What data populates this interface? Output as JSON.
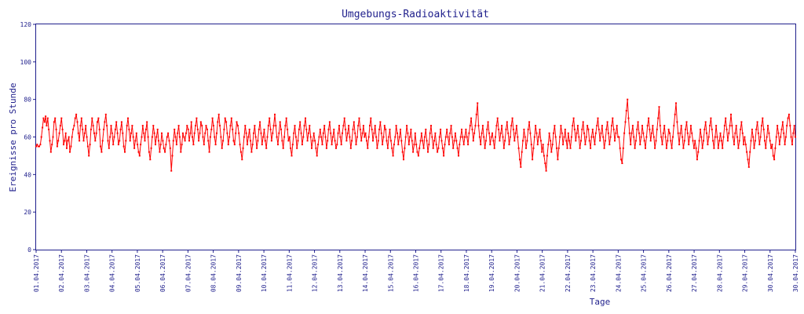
{
  "chart_data": {
    "type": "line",
    "title": "Umgebungs-Radioaktivität",
    "xlabel": "Tage",
    "ylabel": "Ereignisse pro Stunde",
    "ylim": [
      0,
      120
    ],
    "yticks": [
      0,
      20,
      40,
      60,
      80,
      100,
      120
    ],
    "xlim": [
      0,
      29
    ],
    "xtick_labels": [
      "01.04.2017",
      "02.04.2017",
      "03.04.2017",
      "04.04.2017",
      "05.04.2017",
      "06.04.2017",
      "07.04.2017",
      "08.04.2017",
      "09.04.2017",
      "10.04.2017",
      "11.04.2017",
      "12.04.2017",
      "13.04.2017",
      "14.04.2017",
      "15.04.2017",
      "16.04.2017",
      "17.04.2017",
      "18.04.2017",
      "19.04.2017",
      "20.04.2017",
      "21.04.2017",
      "22.04.2017",
      "23.04.2017",
      "24.04.2017",
      "25.04.2017",
      "26.04.2017",
      "27.04.2017",
      "28.04.2017",
      "29.04.2017",
      "30.04.2017",
      "30.04.2017"
    ],
    "grid": false,
    "colors": {
      "line": "#ff0000",
      "axis": "#1f1f8c",
      "marker": "#ff0000"
    },
    "series": [
      {
        "name": "",
        "points_per_day": 24,
        "start_date": "01.04.2017",
        "values": [
          55,
          56,
          55,
          55,
          56,
          60,
          65,
          70,
          68,
          71,
          66,
          70,
          64,
          58,
          52,
          56,
          60,
          68,
          70,
          64,
          55,
          58,
          62,
          66,
          70,
          64,
          56,
          58,
          62,
          54,
          58,
          60,
          52,
          55,
          60,
          64,
          66,
          70,
          72,
          68,
          62,
          58,
          66,
          70,
          64,
          58,
          62,
          66,
          60,
          55,
          50,
          56,
          64,
          70,
          66,
          62,
          58,
          62,
          68,
          70,
          64,
          55,
          52,
          58,
          64,
          68,
          72,
          66,
          58,
          54,
          60,
          66,
          62,
          56,
          60,
          64,
          68,
          62,
          56,
          58,
          64,
          68,
          62,
          55,
          52,
          58,
          66,
          70,
          64,
          58,
          62,
          66,
          60,
          54,
          58,
          62,
          56,
          52,
          50,
          56,
          60,
          66,
          62,
          58,
          64,
          68,
          60,
          52,
          48,
          54,
          60,
          66,
          62,
          56,
          60,
          64,
          58,
          52,
          56,
          62,
          58,
          54,
          52,
          56,
          60,
          62,
          58,
          54,
          42,
          50,
          58,
          64,
          60,
          56,
          62,
          66,
          60,
          52,
          56,
          62,
          60,
          58,
          62,
          66,
          64,
          58,
          62,
          68,
          60,
          56,
          62,
          66,
          70,
          64,
          58,
          62,
          68,
          66,
          60,
          56,
          62,
          66,
          64,
          58,
          52,
          60,
          64,
          70,
          66,
          60,
          56,
          62,
          68,
          72,
          66,
          60,
          54,
          58,
          64,
          70,
          68,
          62,
          56,
          60,
          66,
          70,
          64,
          58,
          56,
          62,
          68,
          66,
          62,
          56,
          52,
          48,
          54,
          60,
          66,
          62,
          56,
          60,
          64,
          58,
          52,
          56,
          62,
          66,
          60,
          54,
          58,
          64,
          68,
          62,
          56,
          60,
          64,
          58,
          54,
          60,
          66,
          70,
          64,
          58,
          62,
          66,
          72,
          66,
          60,
          56,
          62,
          68,
          64,
          58,
          54,
          60,
          66,
          70,
          64,
          58,
          60,
          54,
          50,
          56,
          62,
          66,
          60,
          54,
          58,
          64,
          68,
          62,
          56,
          60,
          66,
          70,
          64,
          58,
          62,
          66,
          60,
          54,
          58,
          62,
          58,
          54,
          50,
          56,
          60,
          64,
          60,
          56,
          62,
          66,
          60,
          54,
          58,
          64,
          68,
          62,
          56,
          60,
          64,
          58,
          54,
          56,
          62,
          66,
          60,
          56,
          62,
          66,
          70,
          64,
          58,
          62,
          66,
          60,
          54,
          58,
          64,
          68,
          62,
          56,
          60,
          66,
          70,
          64,
          58,
          62,
          66,
          60,
          62,
          58,
          54,
          60,
          66,
          70,
          64,
          58,
          62,
          66,
          60,
          54,
          58,
          64,
          68,
          62,
          56,
          60,
          66,
          64,
          58,
          54,
          60,
          64,
          58,
          54,
          50,
          56,
          60,
          66,
          62,
          56,
          60,
          64,
          58,
          52,
          48,
          54,
          60,
          66,
          62,
          56,
          60,
          64,
          58,
          52,
          56,
          62,
          56,
          52,
          50,
          54,
          58,
          62,
          58,
          54,
          60,
          64,
          58,
          52,
          56,
          62,
          66,
          60,
          54,
          58,
          62,
          56,
          52,
          54,
          60,
          64,
          58,
          54,
          50,
          56,
          60,
          64,
          60,
          56,
          62,
          66,
          60,
          54,
          58,
          62,
          58,
          54,
          50,
          56,
          60,
          64,
          60,
          56,
          60,
          64,
          60,
          56,
          62,
          66,
          70,
          64,
          58,
          62,
          66,
          72,
          78,
          66,
          60,
          56,
          62,
          66,
          60,
          54,
          58,
          64,
          68,
          62,
          56,
          60,
          62,
          58,
          54,
          60,
          66,
          70,
          64,
          58,
          62,
          66,
          60,
          54,
          58,
          64,
          68,
          62,
          56,
          60,
          66,
          70,
          64,
          58,
          62,
          66,
          60,
          54,
          48,
          44,
          52,
          58,
          64,
          60,
          54,
          58,
          64,
          68,
          62,
          56,
          48,
          54,
          60,
          66,
          62,
          56,
          60,
          64,
          58,
          52,
          56,
          50,
          46,
          42,
          50,
          56,
          62,
          58,
          52,
          56,
          62,
          66,
          60,
          54,
          48,
          54,
          60,
          66,
          62,
          56,
          60,
          64,
          58,
          54,
          62,
          58,
          54,
          60,
          66,
          70,
          64,
          58,
          62,
          66,
          60,
          54,
          58,
          64,
          68,
          62,
          56,
          60,
          66,
          64,
          58,
          54,
          60,
          64,
          60,
          56,
          62,
          66,
          70,
          64,
          58,
          62,
          66,
          60,
          54,
          58,
          64,
          68,
          62,
          56,
          60,
          66,
          70,
          64,
          58,
          62,
          66,
          60,
          60,
          54,
          48,
          46,
          54,
          62,
          68,
          74,
          80,
          70,
          62,
          56,
          62,
          66,
          60,
          54,
          58,
          64,
          68,
          62,
          56,
          60,
          66,
          62,
          58,
          54,
          60,
          66,
          70,
          64,
          58,
          62,
          66,
          60,
          54,
          58,
          64,
          70,
          76,
          66,
          60,
          56,
          62,
          66,
          60,
          54,
          58,
          64,
          62,
          58,
          54,
          60,
          66,
          72,
          78,
          68,
          62,
          56,
          62,
          66,
          60,
          54,
          58,
          64,
          68,
          62,
          56,
          60,
          66,
          62,
          58,
          54,
          58,
          54,
          48,
          52,
          58,
          64,
          60,
          54,
          58,
          64,
          68,
          62,
          56,
          60,
          66,
          70,
          64,
          58,
          54,
          60,
          66,
          60,
          54,
          58,
          62,
          58,
          54,
          60,
          66,
          70,
          64,
          58,
          62,
          66,
          72,
          66,
          60,
          56,
          62,
          66,
          60,
          54,
          58,
          64,
          68,
          62,
          56,
          60,
          56,
          52,
          48,
          44,
          52,
          58,
          64,
          60,
          54,
          58,
          64,
          68,
          62,
          56,
          60,
          66,
          70,
          64,
          58,
          54,
          60,
          66,
          62,
          58,
          54,
          56,
          50,
          48,
          54,
          60,
          66,
          62,
          56,
          60,
          64,
          68,
          62,
          56,
          60,
          66,
          70,
          72,
          66,
          60,
          56,
          62,
          66,
          60
        ]
      }
    ]
  }
}
